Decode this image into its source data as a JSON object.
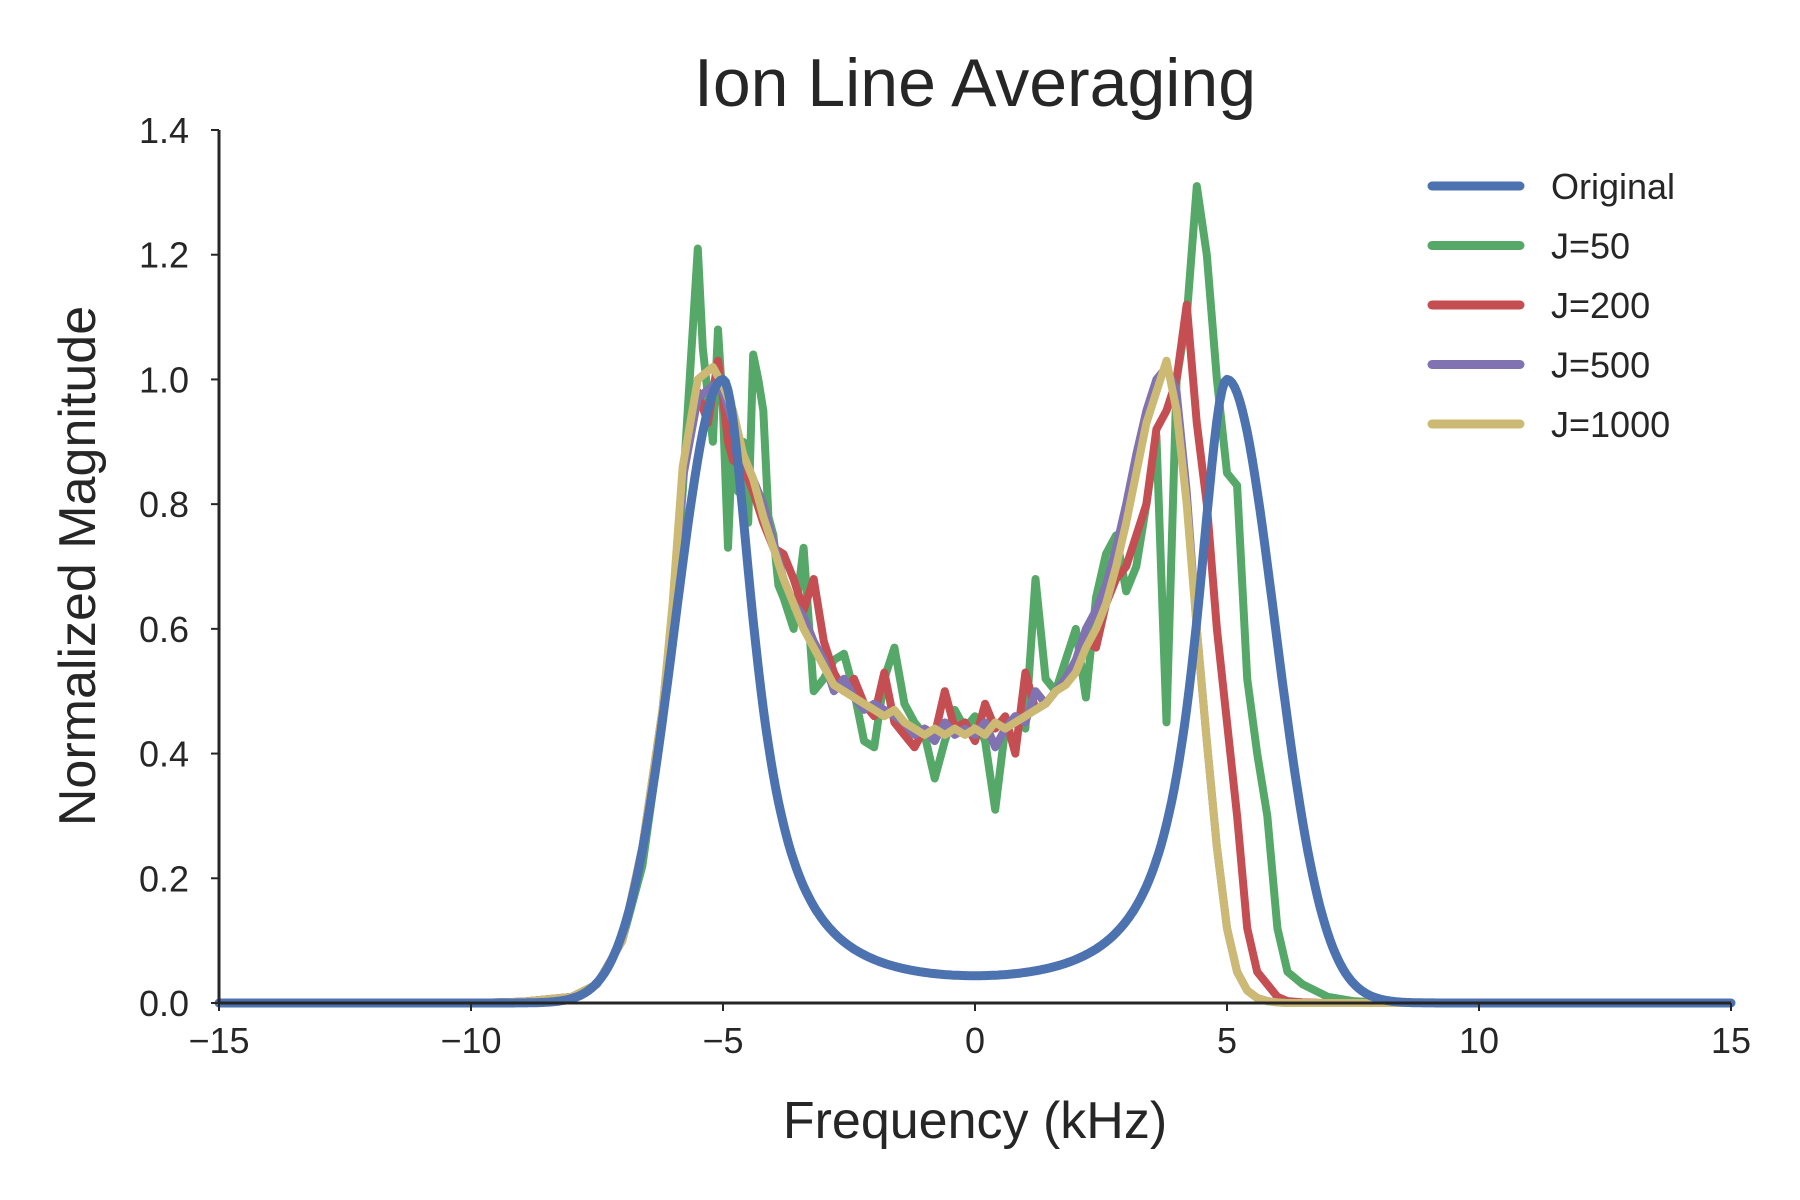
{
  "chart_data": {
    "type": "line",
    "title": "Ion Line Averaging",
    "xlabel": "Frequency (kHz)",
    "ylabel": "Normalized Magnitude",
    "xlim": [
      -15,
      15
    ],
    "ylim": [
      0,
      1.4
    ],
    "xticks": [
      -15,
      -10,
      -5,
      0,
      5,
      10,
      15
    ],
    "xtick_labels": [
      "−15",
      "−10",
      "−5",
      "0",
      "5",
      "10",
      "15"
    ],
    "yticks": [
      0.0,
      0.2,
      0.4,
      0.6,
      0.8,
      1.0,
      1.2,
      1.4
    ],
    "ytick_labels": [
      "0.0",
      "0.2",
      "0.4",
      "0.6",
      "0.8",
      "1.0",
      "1.2",
      "1.4"
    ],
    "grid": false,
    "legend_position": "top-right",
    "series": [
      {
        "name": "J=50",
        "color": "#55a868",
        "x": [
          -15,
          -10,
          -9,
          -8,
          -7.5,
          -7,
          -6.6,
          -6.2,
          -6,
          -5.8,
          -5.5,
          -5.4,
          -5.2,
          -5.1,
          -5,
          -4.9,
          -4.8,
          -4.7,
          -4.6,
          -4.5,
          -4.4,
          -4.3,
          -4.2,
          -4.1,
          -4,
          -3.9,
          -3.8,
          -3.6,
          -3.4,
          -3.2,
          -3,
          -2.8,
          -2.6,
          -2.4,
          -2.2,
          -2,
          -1.8,
          -1.6,
          -1.4,
          -1.2,
          -1,
          -0.8,
          -0.6,
          -0.4,
          -0.2,
          0,
          0.2,
          0.4,
          0.6,
          0.8,
          1,
          1.2,
          1.4,
          1.6,
          1.8,
          2,
          2.2,
          2.4,
          2.6,
          2.8,
          3,
          3.2,
          3.4,
          3.6,
          3.8,
          4,
          4.2,
          4.4,
          4.6,
          4.8,
          5,
          5.2,
          5.4,
          5.6,
          5.8,
          6,
          6.2,
          6.5,
          7,
          7.5,
          8,
          9,
          10,
          15
        ],
        "y": [
          0,
          0,
          0.002,
          0.01,
          0.03,
          0.1,
          0.22,
          0.45,
          0.6,
          0.82,
          1.21,
          1.05,
          0.9,
          1.08,
          0.95,
          0.73,
          0.93,
          0.82,
          0.9,
          0.77,
          1.04,
          1.0,
          0.95,
          0.78,
          0.75,
          0.67,
          0.65,
          0.6,
          0.73,
          0.5,
          0.52,
          0.55,
          0.56,
          0.5,
          0.42,
          0.41,
          0.52,
          0.57,
          0.48,
          0.45,
          0.43,
          0.36,
          0.42,
          0.47,
          0.44,
          0.46,
          0.42,
          0.31,
          0.44,
          0.46,
          0.44,
          0.68,
          0.52,
          0.5,
          0.55,
          0.6,
          0.49,
          0.65,
          0.72,
          0.75,
          0.66,
          0.7,
          0.8,
          0.91,
          0.45,
          1.0,
          1.1,
          1.31,
          1.2,
          1.0,
          0.85,
          0.83,
          0.52,
          0.4,
          0.3,
          0.12,
          0.05,
          0.03,
          0.01,
          0.003,
          0.001,
          0,
          0,
          0
        ]
      },
      {
        "name": "J=200",
        "color": "#c44e52",
        "x": [
          -15,
          -10,
          -9,
          -8,
          -7.5,
          -7,
          -6.6,
          -6.2,
          -6,
          -5.8,
          -5.5,
          -5.3,
          -5.1,
          -5,
          -4.9,
          -4.8,
          -4.6,
          -4.4,
          -4.2,
          -4,
          -3.8,
          -3.6,
          -3.4,
          -3.2,
          -3,
          -2.8,
          -2.6,
          -2.4,
          -2.2,
          -2,
          -1.8,
          -1.6,
          -1.4,
          -1.2,
          -1,
          -0.8,
          -0.6,
          -0.4,
          -0.2,
          0,
          0.2,
          0.4,
          0.6,
          0.8,
          1,
          1.2,
          1.4,
          1.6,
          1.8,
          2,
          2.2,
          2.4,
          2.6,
          2.8,
          3,
          3.2,
          3.4,
          3.6,
          3.8,
          4,
          4.2,
          4.4,
          4.6,
          4.8,
          5,
          5.2,
          5.4,
          5.6,
          5.8,
          6,
          6.2,
          6.5,
          7,
          7.5,
          8,
          9,
          10,
          15
        ],
        "y": [
          0,
          0,
          0.002,
          0.01,
          0.03,
          0.1,
          0.25,
          0.47,
          0.63,
          0.85,
          0.98,
          0.93,
          1.03,
          0.97,
          0.9,
          0.87,
          0.86,
          0.82,
          0.77,
          0.73,
          0.72,
          0.68,
          0.63,
          0.68,
          0.58,
          0.53,
          0.5,
          0.52,
          0.48,
          0.46,
          0.53,
          0.45,
          0.43,
          0.41,
          0.44,
          0.43,
          0.5,
          0.44,
          0.45,
          0.42,
          0.48,
          0.44,
          0.46,
          0.4,
          0.53,
          0.47,
          0.48,
          0.5,
          0.52,
          0.55,
          0.58,
          0.57,
          0.64,
          0.68,
          0.7,
          0.75,
          0.8,
          0.92,
          0.95,
          1.0,
          1.12,
          0.93,
          0.8,
          0.6,
          0.45,
          0.3,
          0.12,
          0.05,
          0.03,
          0.01,
          0.003,
          0.001,
          0,
          0,
          0,
          0,
          0,
          0
        ]
      },
      {
        "name": "J=500",
        "color": "#8172b2",
        "x": [
          -15,
          -10,
          -9,
          -8,
          -7.5,
          -7,
          -6.6,
          -6.2,
          -6,
          -5.8,
          -5.5,
          -5.2,
          -5,
          -4.8,
          -4.6,
          -4.4,
          -4.2,
          -4,
          -3.8,
          -3.6,
          -3.4,
          -3.2,
          -3,
          -2.8,
          -2.6,
          -2.4,
          -2.2,
          -2,
          -1.8,
          -1.6,
          -1.4,
          -1.2,
          -1,
          -0.8,
          -0.6,
          -0.4,
          -0.2,
          0,
          0.2,
          0.4,
          0.6,
          0.8,
          1,
          1.2,
          1.4,
          1.6,
          1.8,
          2,
          2.2,
          2.4,
          2.6,
          2.8,
          3,
          3.2,
          3.4,
          3.6,
          3.8,
          4,
          4.2,
          4.4,
          4.6,
          4.8,
          5,
          5.2,
          5.4,
          5.6,
          5.8,
          6,
          6.2,
          6.5,
          7,
          7.5,
          8,
          9,
          10,
          15
        ],
        "y": [
          0,
          0,
          0.002,
          0.01,
          0.03,
          0.1,
          0.24,
          0.45,
          0.62,
          0.84,
          0.97,
          0.99,
          0.98,
          0.93,
          0.88,
          0.84,
          0.8,
          0.74,
          0.68,
          0.64,
          0.62,
          0.58,
          0.55,
          0.5,
          0.52,
          0.49,
          0.47,
          0.48,
          0.47,
          0.46,
          0.45,
          0.43,
          0.44,
          0.42,
          0.45,
          0.43,
          0.44,
          0.43,
          0.45,
          0.41,
          0.44,
          0.46,
          0.45,
          0.5,
          0.48,
          0.5,
          0.52,
          0.55,
          0.6,
          0.63,
          0.67,
          0.73,
          0.8,
          0.88,
          0.95,
          1.0,
          1.02,
          0.98,
          0.82,
          0.6,
          0.42,
          0.25,
          0.12,
          0.05,
          0.02,
          0.008,
          0.003,
          0.001,
          0,
          0,
          0,
          0,
          0,
          0,
          0,
          0
        ]
      },
      {
        "name": "J=1000",
        "color": "#ccb974",
        "x": [
          -15,
          -10,
          -9,
          -8,
          -7.5,
          -7,
          -6.6,
          -6.2,
          -6,
          -5.8,
          -5.5,
          -5.2,
          -5,
          -4.8,
          -4.6,
          -4.4,
          -4.2,
          -4,
          -3.8,
          -3.6,
          -3.4,
          -3.2,
          -3,
          -2.8,
          -2.6,
          -2.4,
          -2.2,
          -2,
          -1.8,
          -1.6,
          -1.4,
          -1.2,
          -1,
          -0.8,
          -0.6,
          -0.4,
          -0.2,
          0,
          0.2,
          0.4,
          0.6,
          0.8,
          1,
          1.2,
          1.4,
          1.6,
          1.8,
          2,
          2.2,
          2.4,
          2.6,
          2.8,
          3,
          3.2,
          3.4,
          3.6,
          3.8,
          4,
          4.2,
          4.4,
          4.6,
          4.8,
          5,
          5.2,
          5.4,
          5.6,
          5.8,
          6,
          6.2,
          6.5,
          7,
          7.5,
          8,
          9,
          10,
          15
        ],
        "y": [
          0,
          0,
          0.002,
          0.01,
          0.03,
          0.1,
          0.25,
          0.47,
          0.64,
          0.86,
          1.0,
          1.02,
          0.99,
          0.95,
          0.88,
          0.84,
          0.78,
          0.73,
          0.68,
          0.64,
          0.6,
          0.57,
          0.54,
          0.51,
          0.5,
          0.49,
          0.48,
          0.47,
          0.46,
          0.47,
          0.45,
          0.44,
          0.43,
          0.44,
          0.43,
          0.44,
          0.43,
          0.44,
          0.43,
          0.45,
          0.44,
          0.45,
          0.46,
          0.47,
          0.48,
          0.5,
          0.51,
          0.53,
          0.57,
          0.6,
          0.64,
          0.7,
          0.77,
          0.85,
          0.93,
          0.98,
          1.03,
          0.95,
          0.8,
          0.6,
          0.42,
          0.25,
          0.12,
          0.05,
          0.02,
          0.008,
          0.003,
          0.001,
          0,
          0,
          0,
          0,
          0,
          0,
          0,
          0
        ]
      }
    ],
    "original": {
      "name": "Original",
      "color": "#4c72b0",
      "model": {
        "peak_centers": [
          -5,
          5
        ],
        "peak_width": 0.75,
        "shape": "inverse-symmetric ion line"
      }
    },
    "legend_order": [
      "Original",
      "J=50",
      "J=200",
      "J=500",
      "J=1000"
    ]
  }
}
